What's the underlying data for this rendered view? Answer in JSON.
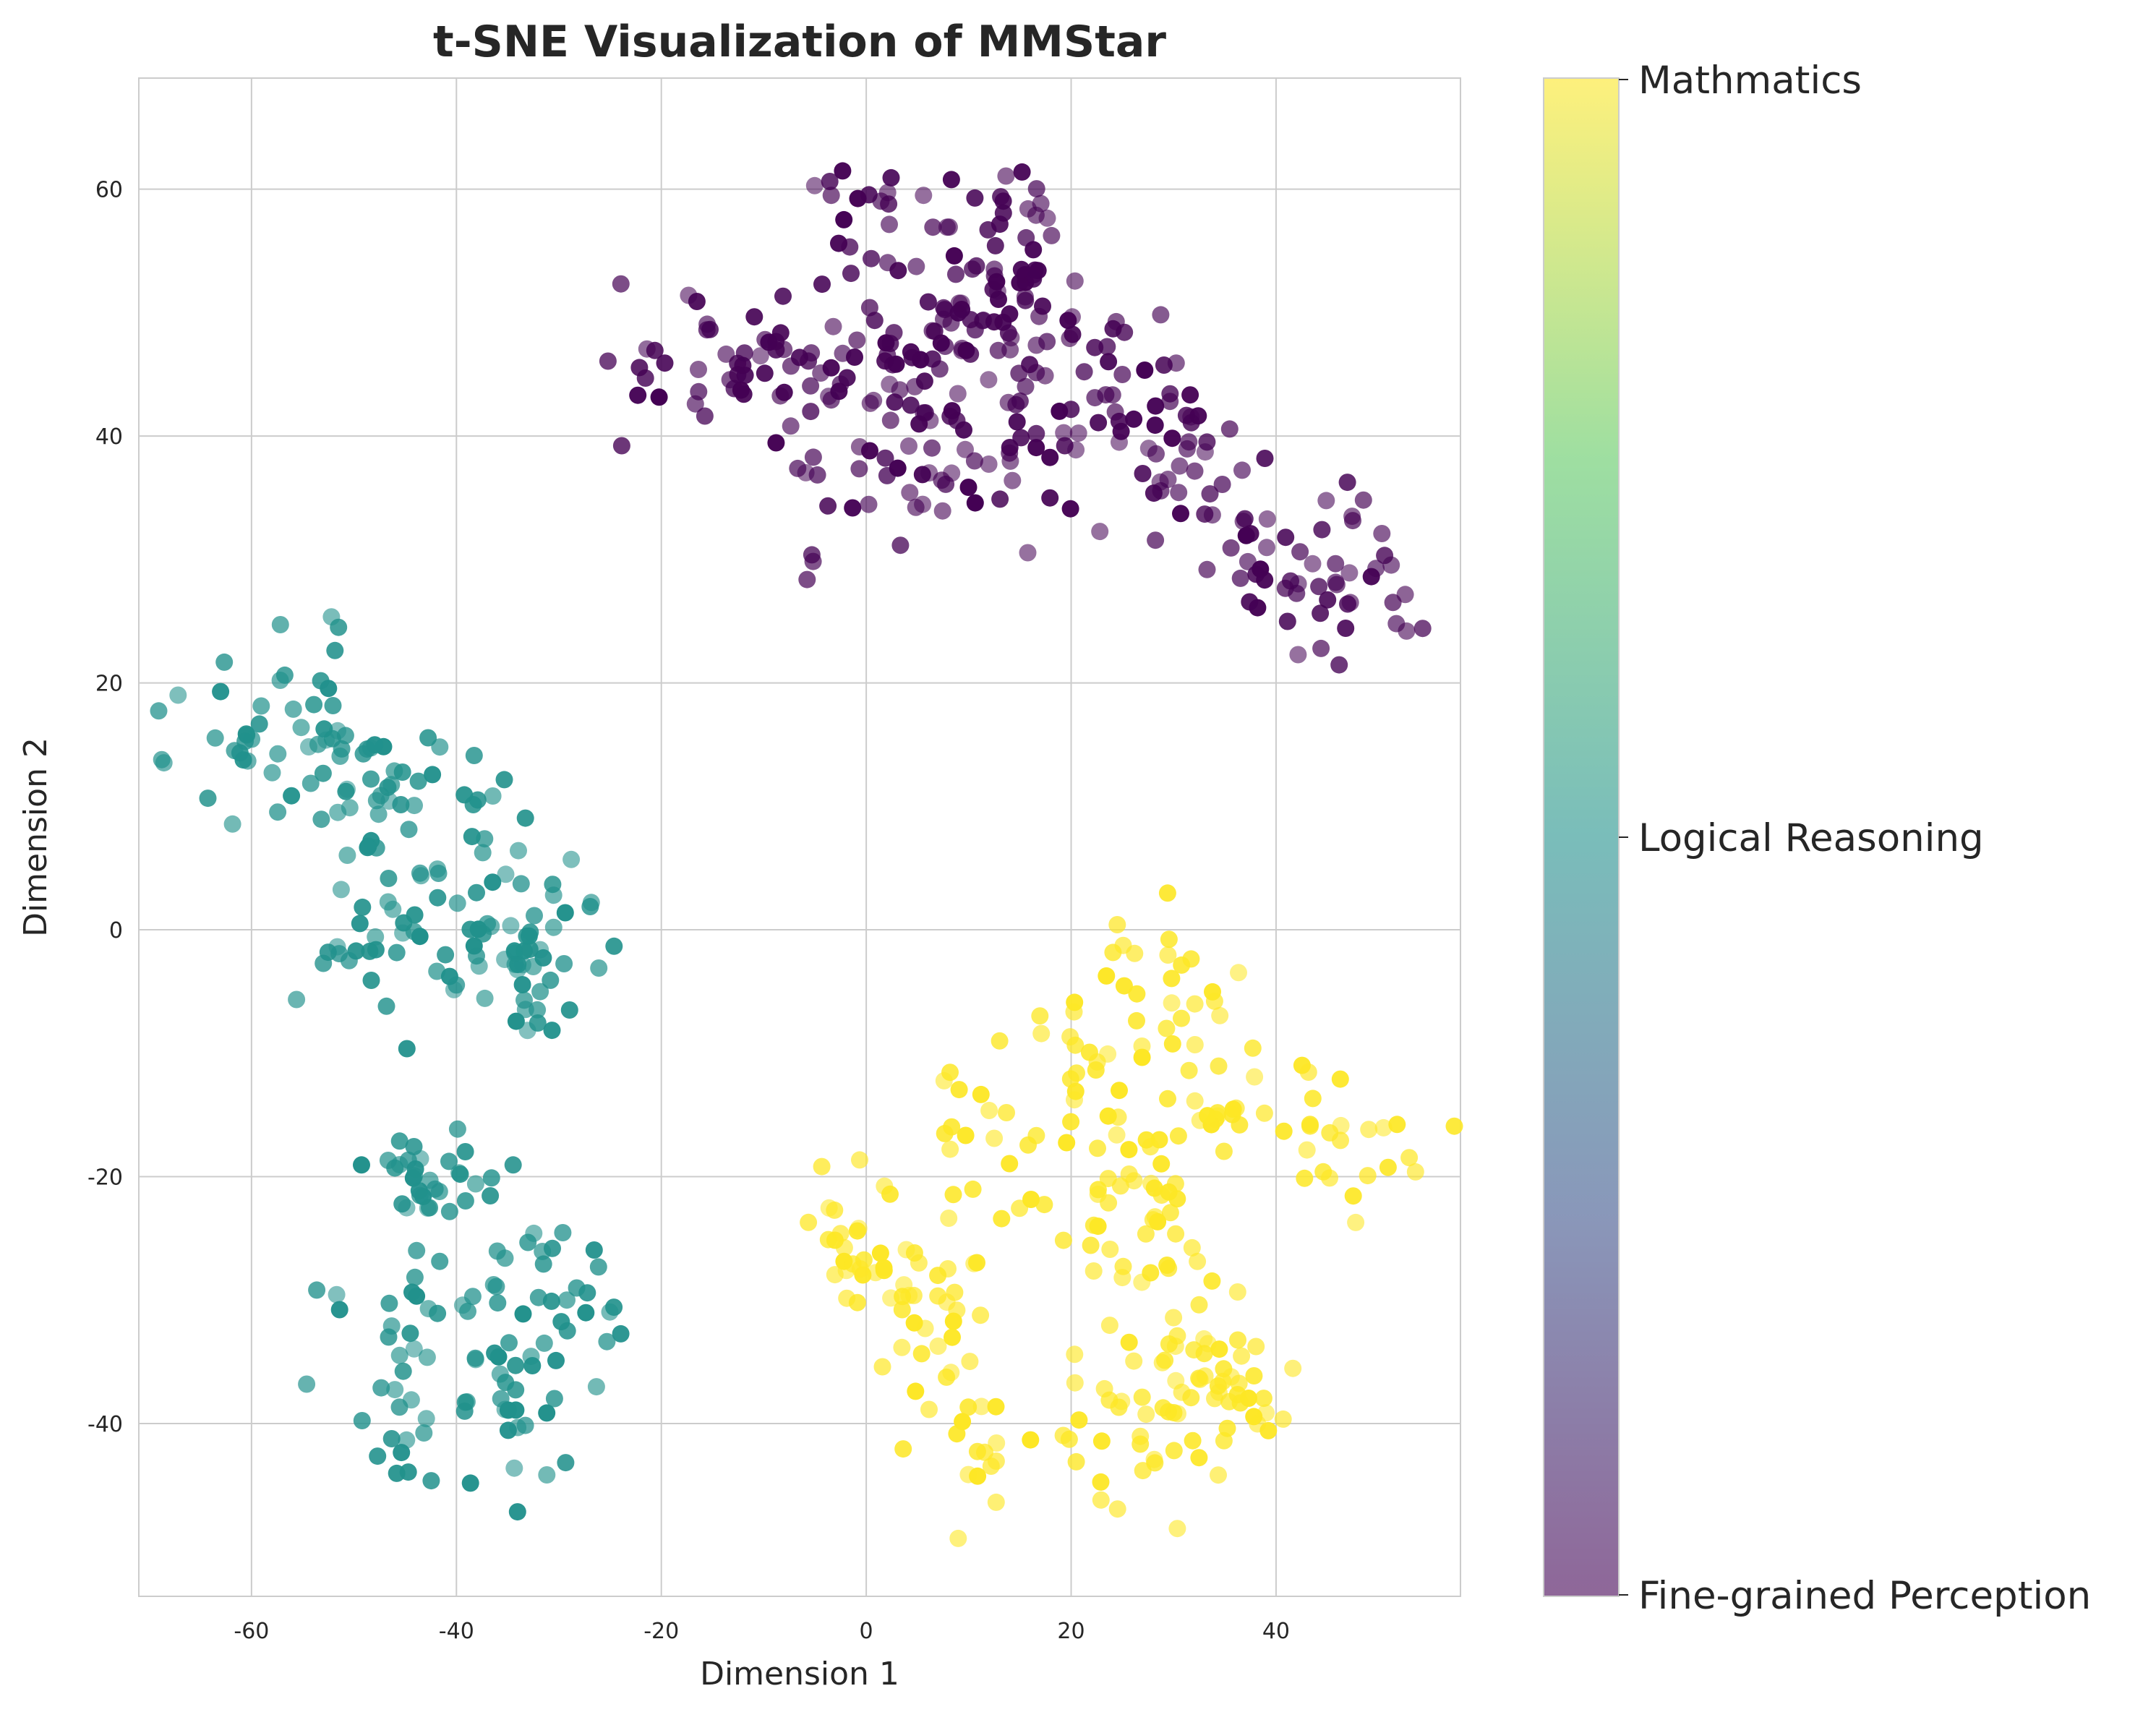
{
  "chart_data": {
    "type": "scatter",
    "title": "t-SNE Visualization of MMStar",
    "xlabel": "Dimension 1",
    "ylabel": "Dimension 2",
    "xlim": [
      -71,
      58
    ],
    "ylim": [
      -54,
      69
    ],
    "xticks": [
      -60,
      -40,
      -20,
      0,
      20,
      40
    ],
    "yticks": [
      60,
      40,
      20,
      0,
      -20,
      -40
    ],
    "xtick_labels": [
      "-60",
      "-40",
      "-20",
      "0",
      "20",
      "40"
    ],
    "ytick_labels": [
      "60",
      "40",
      "20",
      "0",
      "-20",
      "-40"
    ],
    "grid": true,
    "colormap": "viridis",
    "colorbar": {
      "labels": [
        "Mathmatics",
        "Logical Reasoning",
        "Fine-grained Perception"
      ]
    },
    "series": [
      {
        "name": "Fine-grained Perception",
        "color": "#440154",
        "cluster_centers": [
          [
            -20,
            47
          ],
          [
            -12,
            46
          ],
          [
            -5,
            44
          ],
          [
            2,
            46
          ],
          [
            7,
            48
          ],
          [
            12,
            52
          ],
          [
            16,
            47
          ],
          [
            22,
            46
          ],
          [
            -2,
            38
          ],
          [
            6,
            38
          ],
          [
            13,
            36
          ],
          [
            20,
            40
          ],
          [
            28,
            40
          ],
          [
            33,
            38
          ],
          [
            37,
            34
          ],
          [
            42,
            31
          ],
          [
            46,
            28
          ],
          [
            -1,
            58
          ],
          [
            14,
            57
          ]
        ],
        "n": 360
      },
      {
        "name": "Logical Reasoning",
        "color": "#21918c",
        "cluster_centers": [
          [
            -63,
            15
          ],
          [
            -54,
            20
          ],
          [
            -52,
            12
          ],
          [
            -46,
            10
          ],
          [
            -40,
            9
          ],
          [
            -48,
            0
          ],
          [
            -40,
            -2
          ],
          [
            -33,
            0
          ],
          [
            -32,
            -5
          ],
          [
            -45,
            -20
          ],
          [
            -38,
            -24
          ],
          [
            -44,
            -32
          ],
          [
            -36,
            -33
          ],
          [
            -30,
            -30
          ],
          [
            -25,
            -31
          ],
          [
            -35,
            -42
          ],
          [
            -44,
            -40
          ]
        ],
        "n": 300
      },
      {
        "name": "Mathmatics",
        "color": "#fde725",
        "cluster_centers": [
          [
            -1,
            -25
          ],
          [
            6,
            -31
          ],
          [
            12,
            -17
          ],
          [
            20,
            -10
          ],
          [
            26,
            -18
          ],
          [
            30,
            -4
          ],
          [
            34,
            -14
          ],
          [
            46,
            -17
          ],
          [
            11,
            -43
          ],
          [
            24,
            -40
          ],
          [
            31,
            -39
          ],
          [
            36,
            -37
          ],
          [
            27,
            -25
          ]
        ],
        "n": 300
      }
    ]
  }
}
